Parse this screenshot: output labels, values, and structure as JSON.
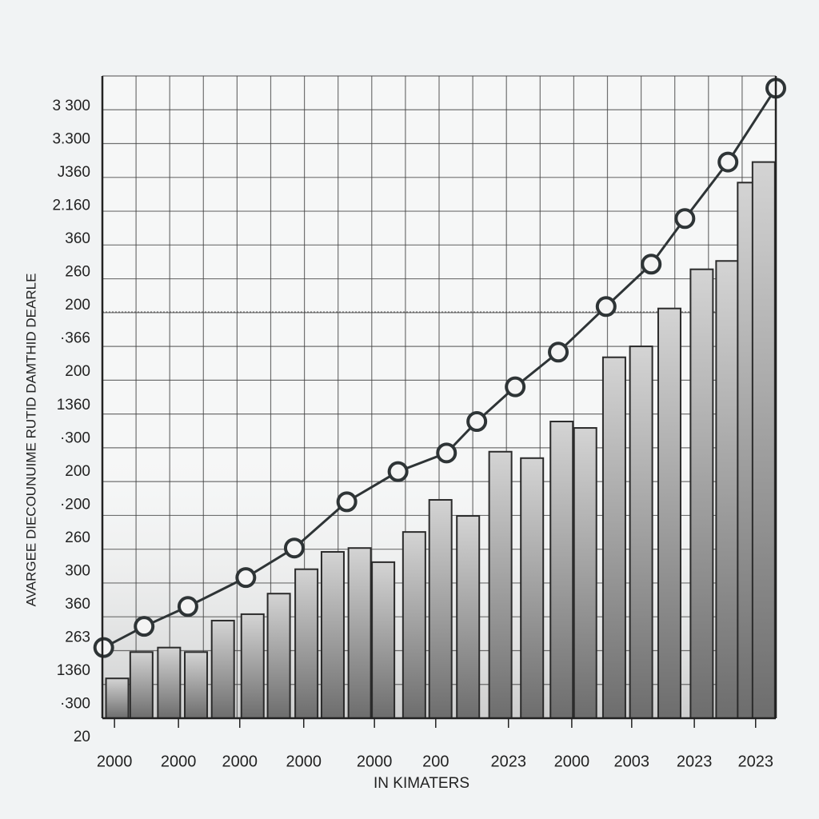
{
  "chart_data": {
    "type": "bar",
    "y_axis_label": "AVARGEE DIECOUNUIME RUTID DAMTHID DEARLE",
    "x_axis_label": "IN KIMATERS",
    "y_labels": [
      "3 300",
      "3.300",
      "J360",
      "2.160",
      "360",
      "260",
      "200",
      "·366",
      "200",
      "1360",
      "·300",
      "200",
      "·200",
      "260",
      "300",
      "360",
      "263",
      "1360",
      "·300",
      "20"
    ],
    "xlim": [
      0,
      100
    ],
    "xticks": [
      {
        "value": 1.8,
        "label": "2000"
      },
      {
        "value": 11.3,
        "label": "2000"
      },
      {
        "value": 20.4,
        "label": "2000"
      },
      {
        "value": 29.9,
        "label": "2000"
      },
      {
        "value": 40.4,
        "label": "2000"
      },
      {
        "value": 49.5,
        "label": "200"
      },
      {
        "value": 60.3,
        "label": "2023"
      },
      {
        "value": 69.7,
        "label": "2000"
      },
      {
        "value": 78.6,
        "label": "2003"
      },
      {
        "value": 87.9,
        "label": "2023"
      },
      {
        "value": 97.0,
        "label": "2023"
      }
    ],
    "ylim": [
      0,
      100
    ],
    "grid": true,
    "series": [
      {
        "type": "bar",
        "color": "#8a8a8a",
        "x": [
          2.2,
          5.8,
          9.9,
          13.9,
          17.9,
          22.3,
          26.2,
          30.3,
          34.2,
          38.2,
          41.7,
          46.3,
          50.2,
          54.3,
          59.1,
          63.8,
          68.2,
          71.7,
          76.0,
          80.0,
          84.2,
          89.0,
          92.8,
          96.0,
          98.2
        ],
        "values": [
          6.2,
          10.3,
          11.0,
          10.3,
          15.2,
          16.2,
          19.4,
          23.2,
          25.9,
          26.5,
          24.3,
          29.0,
          34.0,
          31.5,
          41.5,
          40.5,
          46.2,
          45.2,
          56.2,
          57.9,
          63.8,
          69.9,
          71.2,
          83.4,
          86.6
        ]
      },
      {
        "type": "line",
        "color": "#2e3436",
        "x": [
          0.2,
          6.2,
          12.7,
          21.3,
          28.5,
          36.3,
          43.9,
          51.1,
          55.6,
          61.3,
          67.7,
          74.8,
          81.5,
          86.5,
          92.9,
          100
        ],
        "values": [
          11.0,
          14.3,
          17.4,
          21.9,
          26.5,
          33.7,
          38.4,
          41.3,
          46.2,
          51.6,
          57.0,
          64.1,
          70.7,
          77.8,
          86.6,
          98.1
        ]
      }
    ]
  }
}
